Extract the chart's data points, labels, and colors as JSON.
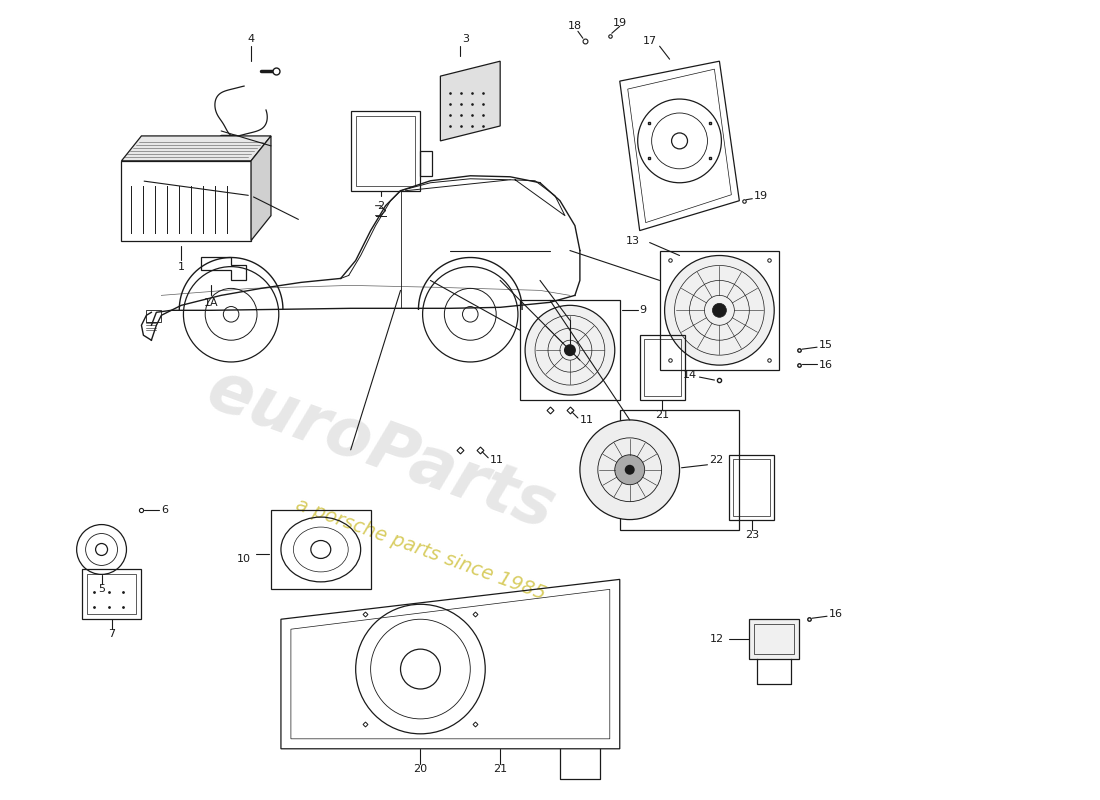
{
  "bg_color": "#ffffff",
  "line_color": "#1a1a1a",
  "watermark1_color": "#d0d0d0",
  "watermark2_color": "#c8b820",
  "fig_w": 11.0,
  "fig_h": 8.0
}
